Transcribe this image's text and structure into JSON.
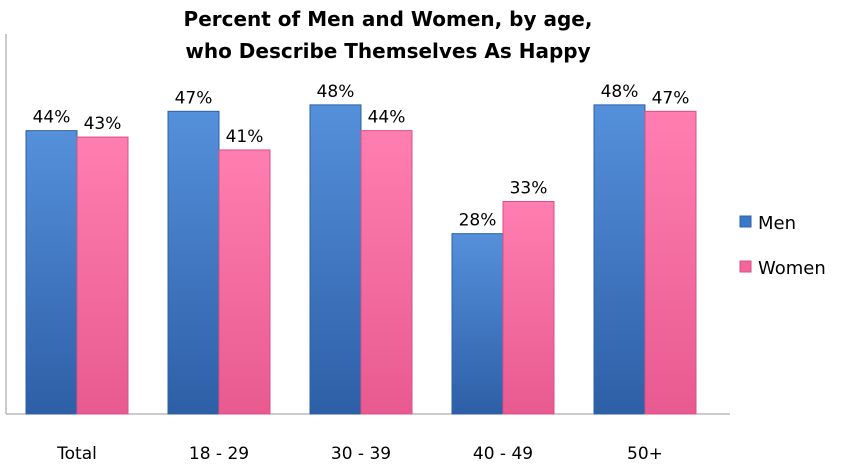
{
  "chart_data": {
    "type": "bar",
    "title": [
      "Percent of Men and Women, by age,",
      "who Describe Themselves As Happy"
    ],
    "categories": [
      "Total",
      "18 - 29",
      "30 - 39",
      "40 - 49",
      "50+"
    ],
    "series": [
      {
        "name": "Men",
        "values": [
          44,
          47,
          48,
          28,
          48
        ],
        "labels": [
          "44%",
          "47%",
          "48%",
          "28%",
          "48%"
        ],
        "color": "#3A78C9"
      },
      {
        "name": "Women",
        "values": [
          43,
          41,
          44,
          33,
          47
        ],
        "labels": [
          "43%",
          "41%",
          "44%",
          "33%",
          "47%"
        ],
        "color": "#F2669A"
      }
    ],
    "ylim": [
      0,
      60
    ],
    "grid": false,
    "legend_position": "right"
  }
}
